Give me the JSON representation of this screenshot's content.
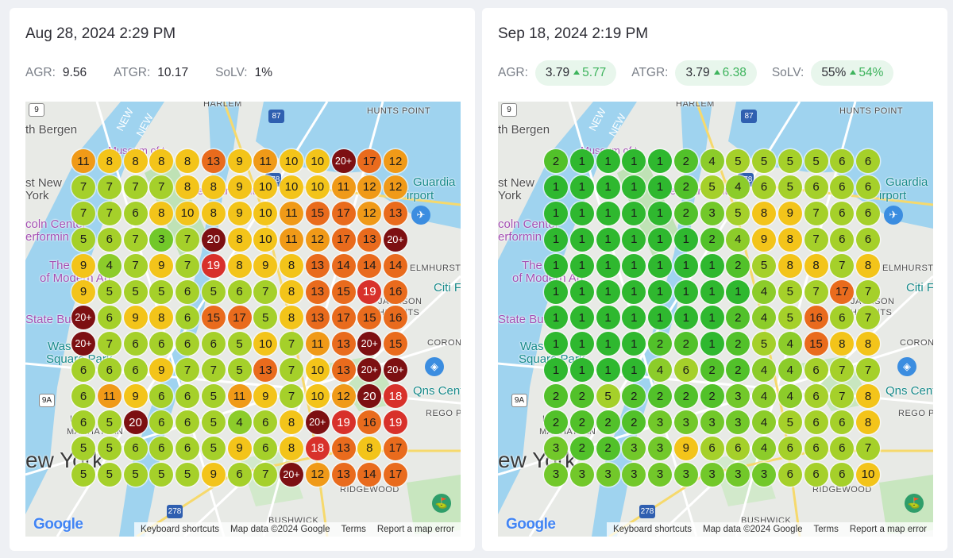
{
  "panels": [
    {
      "timestamp": "Aug 28, 2024 2:29 PM",
      "metrics": [
        {
          "label": "AGR:",
          "value": "9.56",
          "delta": null
        },
        {
          "label": "ATGR:",
          "value": "10.17",
          "delta": null
        },
        {
          "label": "SoLV:",
          "value": "1%",
          "delta": null
        }
      ],
      "grid": [
        [
          "11",
          "8",
          "8",
          "8",
          "8",
          "13",
          "9",
          "11",
          "10",
          "10",
          "20+",
          "17",
          "12"
        ],
        [
          "7",
          "7",
          "7",
          "7",
          "8",
          "8",
          "9",
          "10",
          "10",
          "10",
          "11",
          "12",
          "12"
        ],
        [
          "7",
          "7",
          "6",
          "8",
          "10",
          "8",
          "9",
          "10",
          "11",
          "15",
          "17",
          "12",
          "13"
        ],
        [
          "5",
          "6",
          "7",
          "3",
          "7",
          "20",
          "8",
          "10",
          "11",
          "12",
          "17",
          "13",
          "20+"
        ],
        [
          "9",
          "4",
          "7",
          "9",
          "7",
          "19",
          "8",
          "9",
          "8",
          "13",
          "14",
          "14",
          "14"
        ],
        [
          "9",
          "5",
          "5",
          "5",
          "6",
          "5",
          "6",
          "7",
          "8",
          "13",
          "15",
          "19",
          "16"
        ],
        [
          "20+",
          "6",
          "9",
          "8",
          "6",
          "15",
          "17",
          "5",
          "8",
          "13",
          "17",
          "15",
          "16"
        ],
        [
          "20+",
          "7",
          "6",
          "6",
          "6",
          "6",
          "5",
          "10",
          "7",
          "11",
          "13",
          "20+",
          "15"
        ],
        [
          "6",
          "6",
          "6",
          "9",
          "7",
          "7",
          "5",
          "13",
          "7",
          "10",
          "13",
          "20+",
          "20+"
        ],
        [
          "6",
          "11",
          "9",
          "6",
          "6",
          "5",
          "11",
          "9",
          "7",
          "10",
          "12",
          "20",
          "18"
        ],
        [
          "6",
          "5",
          "20",
          "6",
          "6",
          "5",
          "4",
          "6",
          "8",
          "20+",
          "19",
          "16",
          "19"
        ],
        [
          "5",
          "5",
          "6",
          "6",
          "6",
          "5",
          "9",
          "6",
          "8",
          "18",
          "13",
          "8",
          "17"
        ],
        [
          "5",
          "5",
          "5",
          "5",
          "5",
          "9",
          "6",
          "7",
          "20+",
          "12",
          "13",
          "14",
          "17"
        ]
      ]
    },
    {
      "timestamp": "Sep 18, 2024 2:19 PM",
      "metrics": [
        {
          "label": "AGR:",
          "value": "3.79",
          "delta": "5.77"
        },
        {
          "label": "ATGR:",
          "value": "3.79",
          "delta": "6.38"
        },
        {
          "label": "SoLV:",
          "value": "55%",
          "delta": "54%"
        }
      ],
      "grid": [
        [
          "2",
          "1",
          "1",
          "1",
          "1",
          "2",
          "4",
          "5",
          "5",
          "5",
          "5",
          "6",
          "6"
        ],
        [
          "1",
          "1",
          "1",
          "1",
          "1",
          "2",
          "5",
          "4",
          "6",
          "5",
          "6",
          "6",
          "6"
        ],
        [
          "1",
          "1",
          "1",
          "1",
          "1",
          "2",
          "3",
          "5",
          "8",
          "9",
          "7",
          "6",
          "6"
        ],
        [
          "1",
          "1",
          "1",
          "1",
          "1",
          "1",
          "2",
          "4",
          "9",
          "8",
          "7",
          "6",
          "6"
        ],
        [
          "1",
          "1",
          "1",
          "1",
          "1",
          "1",
          "1",
          "2",
          "5",
          "8",
          "8",
          "7",
          "8"
        ],
        [
          "1",
          "1",
          "1",
          "1",
          "1",
          "1",
          "1",
          "1",
          "4",
          "5",
          "7",
          "17",
          "7"
        ],
        [
          "1",
          "1",
          "1",
          "1",
          "1",
          "1",
          "1",
          "2",
          "4",
          "5",
          "16",
          "6",
          "7"
        ],
        [
          "1",
          "1",
          "1",
          "1",
          "2",
          "2",
          "1",
          "2",
          "5",
          "4",
          "15",
          "8",
          "8"
        ],
        [
          "1",
          "1",
          "1",
          "1",
          "4",
          "6",
          "2",
          "2",
          "4",
          "4",
          "6",
          "7",
          "7"
        ],
        [
          "2",
          "2",
          "5",
          "2",
          "2",
          "2",
          "2",
          "3",
          "4",
          "4",
          "6",
          "7",
          "8"
        ],
        [
          "2",
          "2",
          "2",
          "2",
          "3",
          "3",
          "3",
          "3",
          "4",
          "5",
          "6",
          "6",
          "8"
        ],
        [
          "3",
          "2",
          "2",
          "3",
          "3",
          "9",
          "6",
          "6",
          "4",
          "6",
          "6",
          "6",
          "7"
        ],
        [
          "3",
          "3",
          "3",
          "3",
          "3",
          "3",
          "3",
          "3",
          "3",
          "6",
          "6",
          "6",
          "10"
        ]
      ]
    }
  ],
  "map_labels": {
    "harlem": "HARLEM",
    "hunts_point": "HUNTS POINT",
    "north_bergen": "th Bergen",
    "west_new_york_1": "st New",
    "west_new_york_2": "York",
    "laguardia_1": "Guardia",
    "laguardia_2": "irport",
    "lincoln_1": "coln Center",
    "lincoln_2": "erformin",
    "museum_1": "Museum of t",
    "the_moma_1": "The",
    "the_moma_2": "of Modern Art",
    "metropolitan": "The Metropolitan",
    "elmhurst": "ELMHURST",
    "citi_field": "Citi F",
    "jackson_heights_1": "JACKSON",
    "jackson_heights_2": "HEIGHTS",
    "empire_state": "State Buil",
    "washington_1": "Was",
    "washington_2": "Square Park",
    "corona": "CORONA",
    "queens_center": "Qns Center",
    "rego_park": "REGO PARK",
    "manhattan_1": "LO",
    "manhattan_2": "MANHATTAN",
    "new_york": "ew York",
    "ridgewood": "RIDGEWOOD",
    "bushwick": "BUSHWICK",
    "new_1": "NEW",
    "new_2": "NEW",
    "shield_9": "9",
    "shield_87": "87",
    "shield_278": "278",
    "shield_9a": "9A",
    "shield_278b": "278"
  },
  "attribution": {
    "logo": "Google",
    "keyboard": "Keyboard shortcuts",
    "mapdata": "Map data ©2024 Google",
    "terms": "Terms",
    "report": "Report a map error"
  },
  "colors": {
    "r1": "#2fb82f",
    "r2": "#52c12a",
    "r3": "#72c82a",
    "r4": "#8ccc2a",
    "r5": "#a5d02a",
    "r6": "#a5d02a",
    "r7": "#a5d02a",
    "r8": "#f3c41a",
    "r9": "#f3c41a",
    "r10": "#f3c41a",
    "r11": "#f09a18",
    "r12": "#f09a18",
    "r13": "#e96b1d",
    "r14": "#e96b1d",
    "r15": "#e96b1d",
    "r16": "#e96b1d",
    "r17": "#e96b1d",
    "r18": "#d8312b",
    "r19": "#d8312b",
    "r20": "#7d1012"
  }
}
